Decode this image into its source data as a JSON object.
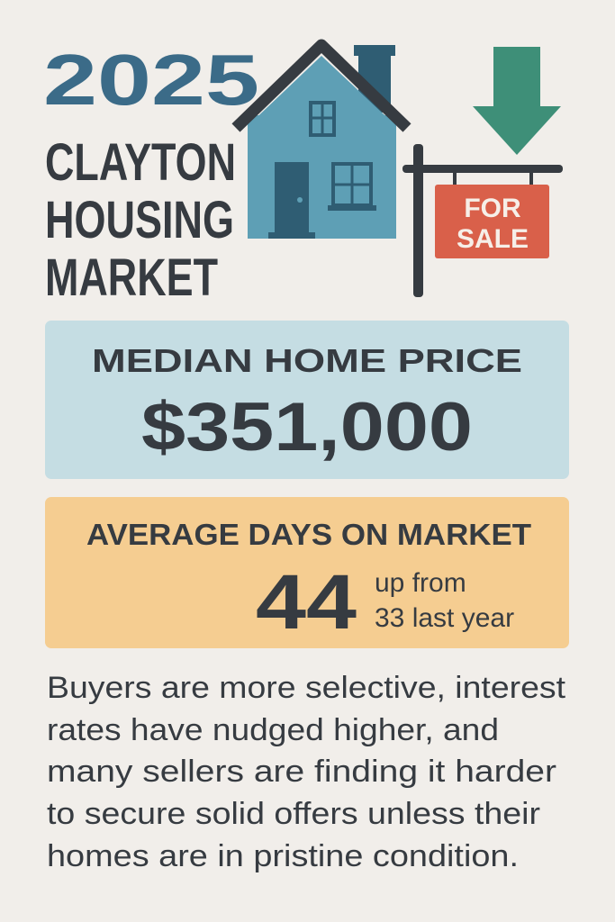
{
  "header": {
    "year": "2025",
    "title_lines": [
      "CLAYTON",
      "HOUSING",
      "MARKET"
    ]
  },
  "sign": {
    "lines": [
      "FOR",
      "SALE"
    ]
  },
  "median_card": {
    "label": "MEDIAN HOME PRICE",
    "value": "$351,000"
  },
  "days_card": {
    "label": "AVERAGE DAYS ON MARKET",
    "value": "44",
    "note_lines": [
      "up from",
      "33 last year"
    ]
  },
  "body": {
    "lines": [
      "Buyers are more selective, interest",
      "rates have nudged higher, and",
      "many sellers are finding it harder",
      "to secure solid offers unless their",
      "homes are in pristine condition."
    ]
  }
}
